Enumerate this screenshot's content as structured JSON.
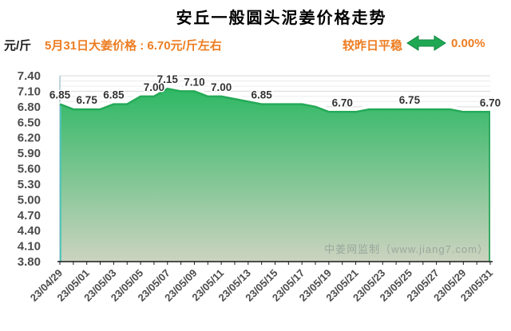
{
  "title": "安丘一般圆头泥姜价格走势",
  "y_unit": "元/斤",
  "subtitle": "5月31日大姜价格 : 6.70元/斤左右",
  "trend": {
    "label": "较昨日平稳",
    "arrow_icon": "double-headed-horizontal-arrow",
    "percent": "0.00%"
  },
  "watermark": "中姜网监制（www.jiang7.com）",
  "colors": {
    "accent_orange": "#ed7d22",
    "arrow_green": "#1fa854",
    "arrow_border": "#128a42",
    "area_top": "#2eb864",
    "area_bottom": "#ccd3c0",
    "line_green": "#25aa58",
    "area_left_edge": "#4cc4b8",
    "area_right_edge": "#2aa55a",
    "grid_major": "#d9d9d9",
    "grid_minor": "#ececec",
    "axis_x": "#1a1a1a",
    "axis_y": "#9fbecd",
    "tick_text": "#4c4c4c",
    "data_label_text": "#333333",
    "watermark_grey": "#98a89b"
  },
  "chart_data": {
    "type": "area",
    "title": "安丘一般圆头泥姜价格走势",
    "ylabel": "元/斤",
    "ylim": [
      3.8,
      7.4
    ],
    "y_major_step": 0.3,
    "y_minor_step": 0.1,
    "grid": true,
    "legend": "none",
    "x": [
      "23/04/29",
      "23/04/30",
      "23/05/01",
      "23/05/02",
      "23/05/03",
      "23/05/04",
      "23/05/05",
      "23/05/06",
      "23/05/07",
      "23/05/08",
      "23/05/09",
      "23/05/10",
      "23/05/11",
      "23/05/12",
      "23/05/13",
      "23/05/14",
      "23/05/15",
      "23/05/16",
      "23/05/17",
      "23/05/18",
      "23/05/19",
      "23/05/20",
      "23/05/21",
      "23/05/22",
      "23/05/23",
      "23/05/24",
      "23/05/25",
      "23/05/26",
      "23/05/27",
      "23/05/28",
      "23/05/29",
      "23/05/30",
      "23/05/31"
    ],
    "values": [
      6.85,
      6.75,
      6.75,
      6.75,
      6.85,
      6.85,
      7.0,
      7.0,
      7.15,
      7.1,
      7.1,
      7.0,
      7.0,
      6.95,
      6.9,
      6.85,
      6.85,
      6.85,
      6.85,
      6.8,
      6.7,
      6.7,
      6.7,
      6.75,
      6.75,
      6.75,
      6.75,
      6.75,
      6.75,
      6.75,
      6.7,
      6.7,
      6.7
    ],
    "x_label_every": 2,
    "point_labels": [
      {
        "i": 0,
        "t": "6.85"
      },
      {
        "i": 2,
        "t": "6.75"
      },
      {
        "i": 4,
        "t": "6.85"
      },
      {
        "i": 7,
        "t": "7.00"
      },
      {
        "i": 8,
        "t": "7.15"
      },
      {
        "i": 10,
        "t": "7.10"
      },
      {
        "i": 12,
        "t": "7.00"
      },
      {
        "i": 15,
        "t": "6.85"
      },
      {
        "i": 21,
        "t": "6.70"
      },
      {
        "i": 26,
        "t": "6.75"
      },
      {
        "i": 32,
        "t": "6.70"
      }
    ]
  }
}
